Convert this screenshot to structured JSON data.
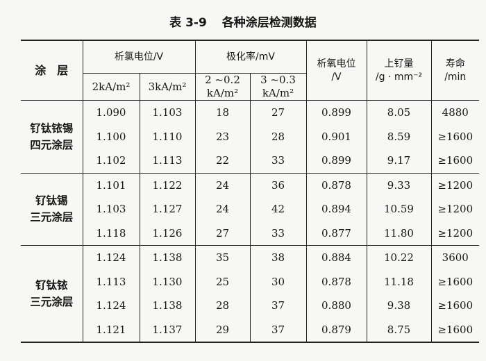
{
  "title": {
    "number": "表 3-9",
    "text": "各种涂层检测数据"
  },
  "header": {
    "coating": "涂　层",
    "cl_potential": "析氯电位/V",
    "cl_2": "2kA/m²",
    "cl_3": "3kA/m²",
    "polarization": "极化率/mV",
    "pol_2_line1": "2 ~0.2",
    "pol_2_line2": "kA/m²",
    "pol_3_line1": "3 ~0.3",
    "pol_3_line2": "kA/m²",
    "o2_line1": "析氧电位",
    "o2_line2": "/V",
    "ru_line1": "上钌量",
    "ru_line2": "/g · mm⁻²",
    "life_line1": "寿命",
    "life_line2": "/min"
  },
  "groups": [
    {
      "name_line1": "钌钛铱锡",
      "name_line2": "四元涂层",
      "rows": [
        [
          "1.090",
          "1.103",
          "18",
          "27",
          "0.899",
          "8.05",
          "4880"
        ],
        [
          "1.100",
          "1.110",
          "23",
          "28",
          "0.901",
          "8.59",
          "≥1600"
        ],
        [
          "1.102",
          "1.113",
          "22",
          "33",
          "0.899",
          "9.17",
          "≥1600"
        ]
      ]
    },
    {
      "name_line1": "钌钛锡",
      "name_line2": "三元涂层",
      "rows": [
        [
          "1.101",
          "1.122",
          "24",
          "36",
          "0.878",
          "9.33",
          "≥1200"
        ],
        [
          "1.103",
          "1.127",
          "24",
          "42",
          "0.894",
          "10.59",
          "≥1200"
        ],
        [
          "1.118",
          "1.126",
          "27",
          "33",
          "0.877",
          "11.80",
          "≥1200"
        ]
      ]
    },
    {
      "name_line1": "钌钛铱",
      "name_line2": "三元涂层",
      "rows": [
        [
          "1.124",
          "1.138",
          "35",
          "38",
          "0.884",
          "10.22",
          "3600"
        ],
        [
          "1.113",
          "1.130",
          "25",
          "30",
          "0.878",
          "11.18",
          "≥1600"
        ],
        [
          "1.124",
          "1.138",
          "28",
          "37",
          "0.880",
          "9.38",
          "≥1600"
        ],
        [
          "1.121",
          "1.137",
          "29",
          "37",
          "0.879",
          "8.75",
          "≥1600"
        ]
      ]
    }
  ]
}
